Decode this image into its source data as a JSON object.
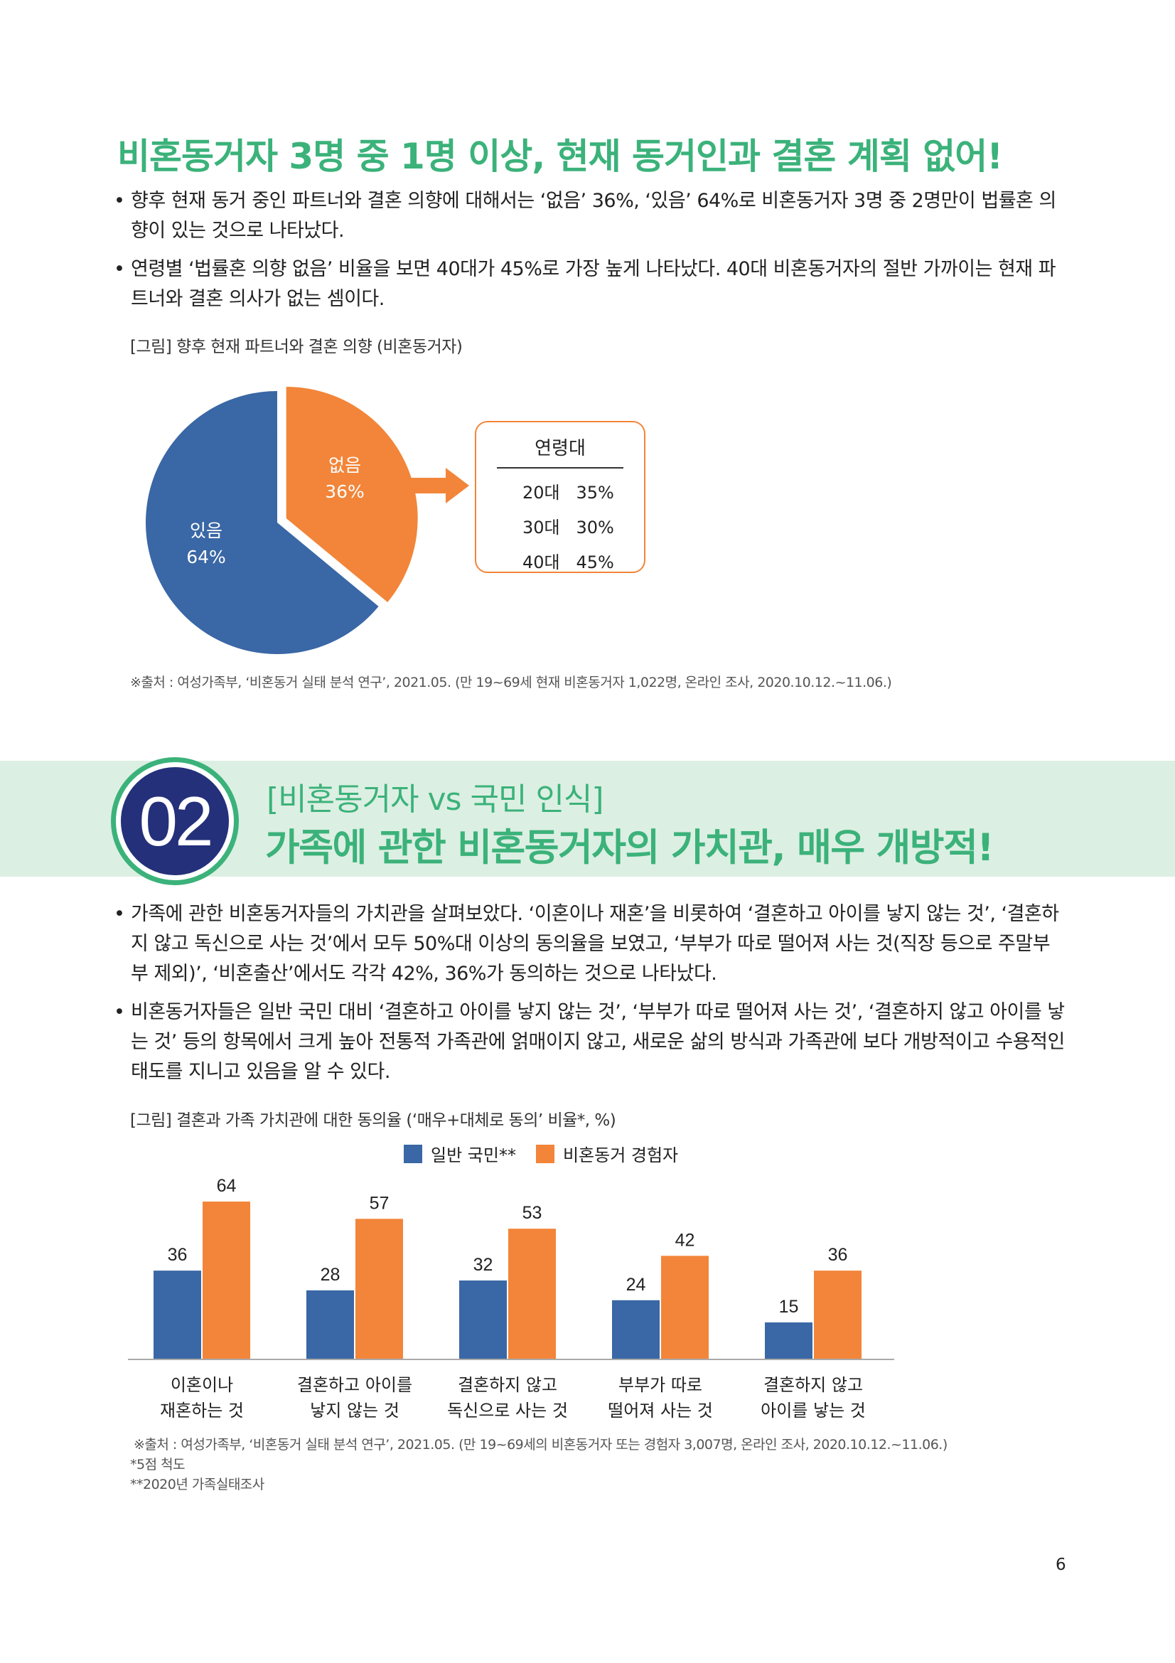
{
  "section1": {
    "title": "비혼동거자 3명 중 1명 이상, 현재 동거인과 결혼 계획 없어!",
    "bullets": [
      "향후 현재 동거 중인 파트너와 결혼 의향에 대해서는 ‘없음’ 36%, ‘있음’ 64%로 비혼동거자 3명 중 2명만이 법률혼 의향이 있는 것으로 나타났다.",
      "연령별 ‘법률혼 의향 없음’ 비율을 보면 40대가 45%로 가장 높게 나타났다. 40대 비혼동거자의 절반 가까이는 현재 파트너와 결혼 의사가 없는 셈이다."
    ],
    "figure_caption": "[그림] 향후 현재 파트너와 결혼 의향 (비혼동거자)",
    "pie_labels": {
      "no_label": "없음",
      "no_value": "36%",
      "yes_label": "있음",
      "yes_value": "64%"
    },
    "age_box": {
      "title": "연령대",
      "rows": [
        {
          "age": "20대",
          "value": "35%"
        },
        {
          "age": "30대",
          "value": "30%"
        },
        {
          "age": "40대",
          "value": "45%"
        }
      ]
    },
    "source": "※출처 : 여성가족부, ‘비혼동거 실태 분석 연구’, 2021.05. (만 19~69세 현재 비혼동거자 1,022명, 온라인 조사, 2020.10.12.~11.06.)"
  },
  "section2": {
    "number": "02",
    "subtitle": "[비혼동거자 vs 국민 인식]",
    "title": "가족에 관한 비혼동거자의 가치관, 매우 개방적!",
    "bullets": [
      "가족에 관한 비혼동거자들의 가치관을 살펴보았다. ‘이혼이나 재혼’을 비롯하여 ‘결혼하고 아이를 낳지 않는 것’, ‘결혼하지 않고 독신으로 사는 것’에서 모두 50%대 이상의 동의율을 보였고, ‘부부가 따로 떨어져 사는 것(직장 등으로 주말부부 제외)’, ‘비혼출산’에서도 각각 42%, 36%가 동의하는 것으로 나타났다.",
      "비혼동거자들은 일반 국민 대비 ‘결혼하고 아이를 낳지 않는 것’, ‘부부가 따로 떨어져 사는 것’, ‘결혼하지 않고 아이를 낳는 것’ 등의 항목에서 크게 높아 전통적 가족관에 얽매이지 않고, 새로운 삶의 방식과 가족관에 보다 개방적이고 수용적인 태도를 지니고 있음을 알 수 있다."
    ],
    "figure_caption": "[그림] 결혼과 가족 가치관에 대한 동의율 (‘매우+대체로 동의’ 비율*, %)",
    "source": "※출처 : 여성가족부, ‘비혼동거 실태 분석 연구’, 2021.05. (만 19~69세의 비혼동거자 또는 경험자 3,007명, 온라인 조사, 2020.10.12.~11.06.)",
    "footnote1": "*5점 척도",
    "footnote2": "**2020년 가족실태조사"
  },
  "page_number": "6",
  "colors": {
    "green": "#3bb27a",
    "blue": "#3a67a5",
    "orange": "#f28539",
    "navy": "#24307a",
    "band": "#dcefe3"
  },
  "chart_data": [
    {
      "type": "pie",
      "title": "",
      "slices": [
        {
          "label": "없음",
          "value": 36,
          "color": "#f28539"
        },
        {
          "label": "있음",
          "value": 64,
          "color": "#3a67a5"
        }
      ]
    },
    {
      "type": "bar",
      "title": "",
      "categories": [
        [
          "이혼이나",
          "재혼하는 것"
        ],
        [
          "결혼하고 아이를",
          "낳지 않는 것"
        ],
        [
          "결혼하지 않고",
          "독신으로 사는 것"
        ],
        [
          "부부가 따로",
          "떨어져 사는 것"
        ],
        [
          "결혼하지 않고",
          "아이를 낳는 것"
        ]
      ],
      "series": [
        {
          "name": "일반 국민**",
          "color": "#3a67a5",
          "values": [
            36,
            28,
            32,
            24,
            15
          ]
        },
        {
          "name": "비혼동거 경험자",
          "color": "#f28539",
          "values": [
            64,
            57,
            53,
            42,
            36
          ]
        }
      ],
      "ylim": [
        0,
        64
      ],
      "legend": "top-center",
      "grid": false
    }
  ]
}
